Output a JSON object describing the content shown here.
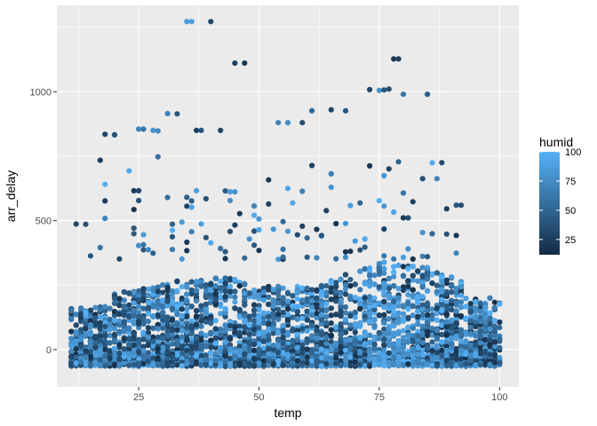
{
  "chart_data": {
    "type": "scatter",
    "title": "",
    "xlabel": "temp",
    "ylabel": "arr_delay",
    "xlim": [
      8,
      104
    ],
    "ylim": [
      -145,
      1335
    ],
    "x_ticks": [
      25,
      50,
      75,
      100
    ],
    "y_ticks": [
      0,
      500,
      1000
    ],
    "grid": true,
    "colors": {
      "panel": "#ebebeb",
      "grid": "#ffffff",
      "low": "#132b43",
      "high": "#56b1f7"
    },
    "legend": {
      "title": "humid",
      "position": "right",
      "min": 12,
      "max": 100,
      "ticks": [
        25,
        50,
        75,
        100
      ]
    },
    "sample_points": [
      {
        "x": 35,
        "y": 1272,
        "humid": 85
      },
      {
        "x": 36,
        "y": 1272,
        "humid": 88
      },
      {
        "x": 40,
        "y": 1272,
        "humid": 30
      },
      {
        "x": 45,
        "y": 1111,
        "humid": 25
      },
      {
        "x": 47,
        "y": 1111,
        "humid": 20
      },
      {
        "x": 78,
        "y": 1127,
        "humid": 20
      },
      {
        "x": 79,
        "y": 1127,
        "humid": 25
      },
      {
        "x": 73,
        "y": 1008,
        "humid": 30
      },
      {
        "x": 75,
        "y": 1005,
        "humid": 80
      },
      {
        "x": 76,
        "y": 1007,
        "humid": 40
      },
      {
        "x": 77,
        "y": 1010,
        "humid": 35
      },
      {
        "x": 80,
        "y": 990,
        "humid": 60
      },
      {
        "x": 85,
        "y": 990,
        "humid": 45
      },
      {
        "x": 18,
        "y": 835,
        "humid": 30
      },
      {
        "x": 20,
        "y": 833,
        "humid": 35
      },
      {
        "x": 25,
        "y": 855,
        "humid": 70
      },
      {
        "x": 26,
        "y": 855,
        "humid": 60
      },
      {
        "x": 28,
        "y": 850,
        "humid": 80
      },
      {
        "x": 29,
        "y": 848,
        "humid": 75
      },
      {
        "x": 31,
        "y": 915,
        "humid": 70
      },
      {
        "x": 33,
        "y": 914,
        "humid": 40
      },
      {
        "x": 37,
        "y": 850,
        "humid": 25
      },
      {
        "x": 38,
        "y": 850,
        "humid": 40
      },
      {
        "x": 42,
        "y": 850,
        "humid": 30
      },
      {
        "x": 54,
        "y": 880,
        "humid": 70
      },
      {
        "x": 56,
        "y": 880,
        "humid": 75
      },
      {
        "x": 59,
        "y": 880,
        "humid": 35
      },
      {
        "x": 61,
        "y": 926,
        "humid": 50
      },
      {
        "x": 65,
        "y": 930,
        "humid": 30
      },
      {
        "x": 68,
        "y": 926,
        "humid": 40
      },
      {
        "x": 12,
        "y": 487,
        "humid": 30
      },
      {
        "x": 14,
        "y": 486,
        "humid": 35
      },
      {
        "x": 24,
        "y": 616,
        "humid": 25
      },
      {
        "x": 25,
        "y": 616,
        "humid": 30
      },
      {
        "x": 44,
        "y": 612,
        "humid": 85
      },
      {
        "x": 45,
        "y": 612,
        "humid": 80
      },
      {
        "x": 91,
        "y": 560,
        "humid": 40
      },
      {
        "x": 92,
        "y": 560,
        "humid": 35
      }
    ],
    "description_counts": {
      "dense_points_approx": 9000
    }
  }
}
